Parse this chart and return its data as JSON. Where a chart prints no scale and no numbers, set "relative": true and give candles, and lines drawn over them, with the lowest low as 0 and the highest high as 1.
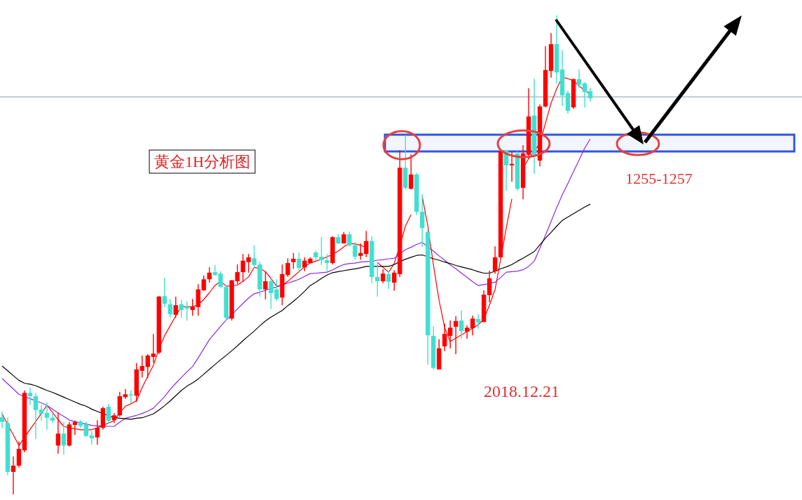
{
  "chart_data": {
    "type": "candlestick",
    "relative": true,
    "title": "黄金1H分析图",
    "annotations": [
      "2018.12.21"
    ],
    "categories": [
      null,
      null,
      null,
      null,
      null,
      null,
      null,
      null,
      null,
      null,
      null,
      null,
      null,
      null,
      null,
      null,
      null,
      null,
      null,
      null,
      null,
      null,
      null,
      null,
      null,
      null,
      null,
      null,
      null,
      null,
      null,
      null,
      null,
      null,
      null,
      null,
      null,
      null,
      null,
      null,
      null,
      null,
      null,
      null,
      null,
      null,
      null,
      null,
      null,
      null,
      null,
      null,
      null,
      null,
      null,
      null,
      null,
      null,
      null,
      null,
      null,
      null,
      null,
      null,
      null,
      null,
      null,
      null,
      null,
      null,
      null,
      null,
      null,
      null,
      null,
      null,
      null,
      null,
      null,
      null,
      null,
      null,
      null,
      null,
      null,
      null,
      null,
      null,
      null,
      null,
      null,
      null,
      null,
      null,
      null,
      null,
      null,
      null,
      null,
      null,
      null,
      null,
      null,
      null,
      null,
      null
    ],
    "ohlc": [
      [
        0.161,
        0.173,
        0.138,
        0.151
      ],
      [
        0.149,
        0.161,
        0.04,
        0.047
      ],
      [
        0.047,
        0.079,
        0,
        0.06
      ],
      [
        0.06,
        0.11,
        0.056,
        0.095
      ],
      [
        0.092,
        0.217,
        0.088,
        0.212
      ],
      [
        0.212,
        0.223,
        0.187,
        0.205
      ],
      [
        0.205,
        0.212,
        0.116,
        0.176
      ],
      [
        0.177,
        0.187,
        0.154,
        0.168
      ],
      [
        0.17,
        0.192,
        0.135,
        0.16
      ],
      [
        0.16,
        0.168,
        0.149,
        0.154
      ],
      [
        0.102,
        0.171,
        0.085,
        0.127
      ],
      [
        0.127,
        0.151,
        0.083,
        0.102
      ],
      [
        0.102,
        0.151,
        0.1,
        0.146
      ],
      [
        0.145,
        0.154,
        0.124,
        0.151
      ],
      [
        0.152,
        0.155,
        0.139,
        0.143
      ],
      [
        0.146,
        0.152,
        0.12,
        0.122
      ],
      [
        0.123,
        0.132,
        0.104,
        0.117
      ],
      [
        0.119,
        0.155,
        0.104,
        0.139
      ],
      [
        0.139,
        0.183,
        0.135,
        0.18
      ],
      [
        0.183,
        0.189,
        0.149,
        0.154
      ],
      [
        0.155,
        0.17,
        0.149,
        0.165
      ],
      [
        0.165,
        0.214,
        0.162,
        0.205
      ],
      [
        0.203,
        0.22,
        0.199,
        0.209
      ],
      [
        0.209,
        0.217,
        0.19,
        0.208
      ],
      [
        0.206,
        0.274,
        0.193,
        0.261
      ],
      [
        0.258,
        0.29,
        0.244,
        0.268
      ],
      [
        0.266,
        0.293,
        0.243,
        0.29
      ],
      [
        0.287,
        0.335,
        0.275,
        0.294
      ],
      [
        0.296,
        0.414,
        0.293,
        0.413
      ],
      [
        0.414,
        0.452,
        0.391,
        0.398
      ],
      [
        0.397,
        0.408,
        0.369,
        0.376
      ],
      [
        0.375,
        0.413,
        0.369,
        0.395
      ],
      [
        0.397,
        0.406,
        0.369,
        0.385
      ],
      [
        0.392,
        0.403,
        0.363,
        0.388
      ],
      [
        0.385,
        0.408,
        0.373,
        0.392
      ],
      [
        0.391,
        0.439,
        0.373,
        0.428
      ],
      [
        0.426,
        0.457,
        0.425,
        0.449
      ],
      [
        0.449,
        0.474,
        0.442,
        0.463
      ],
      [
        0.464,
        0.479,
        0.457,
        0.458
      ],
      [
        0.461,
        0.466,
        0.432,
        0.433
      ],
      [
        0.433,
        0.436,
        0.363,
        0.369
      ],
      [
        0.367,
        0.448,
        0.363,
        0.447
      ],
      [
        0.445,
        0.48,
        0.439,
        0.464
      ],
      [
        0.464,
        0.502,
        0.444,
        0.488
      ],
      [
        0.485,
        0.502,
        0.463,
        0.495
      ],
      [
        0.493,
        0.52,
        0.473,
        0.479
      ],
      [
        0.48,
        0.486,
        0.413,
        0.428
      ],
      [
        0.428,
        0.466,
        0.407,
        0.445
      ],
      [
        0.445,
        0.451,
        0.387,
        0.42
      ],
      [
        0.428,
        0.449,
        0.404,
        0.408
      ],
      [
        0.411,
        0.48,
        0.395,
        0.46
      ],
      [
        0.458,
        0.493,
        0.454,
        0.483
      ],
      [
        0.485,
        0.504,
        0.471,
        0.492
      ],
      [
        0.492,
        0.505,
        0.466,
        0.473
      ],
      [
        0.474,
        0.495,
        0.466,
        0.488
      ],
      [
        0.483,
        0.495,
        0.482,
        0.492
      ],
      [
        0.505,
        0.509,
        0.488,
        0.495
      ],
      [
        0.496,
        0.537,
        0.479,
        0.489
      ],
      [
        0.489,
        0.502,
        0.466,
        0.483
      ],
      [
        0.483,
        0.539,
        0.48,
        0.537
      ],
      [
        0.537,
        0.543,
        0.523,
        0.524
      ],
      [
        0.524,
        0.548,
        0.524,
        0.543
      ],
      [
        0.543,
        0.549,
        0.517,
        0.52
      ],
      [
        0.52,
        0.527,
        0.49,
        0.496
      ],
      [
        0.498,
        0.524,
        0.49,
        0.504
      ],
      [
        0.502,
        0.55,
        0.495,
        0.529
      ],
      [
        0.529,
        0.539,
        0.441,
        0.454
      ],
      [
        0.454,
        0.486,
        0.413,
        0.445
      ],
      [
        0.445,
        0.47,
        0.441,
        0.461
      ],
      [
        0.46,
        0.466,
        0.429,
        0.444
      ],
      [
        0.442,
        0.468,
        0.425,
        0.463
      ],
      [
        0.46,
        0.719,
        0.454,
        0.682
      ],
      [
        0.682,
        0.75,
        0.637,
        0.64
      ],
      [
        0.638,
        0.71,
        0.637,
        0.668
      ],
      [
        0.668,
        0.671,
        0.584,
        0.59
      ],
      [
        0.59,
        0.627,
        0.517,
        0.556
      ],
      [
        0.548,
        0.552,
        0.271,
        0.332
      ],
      [
        0.331,
        0.351,
        0.261,
        0.264
      ],
      [
        0.261,
        0.324,
        0.261,
        0.305
      ],
      [
        0.309,
        0.356,
        0.299,
        0.335
      ],
      [
        0.331,
        0.363,
        0.305,
        0.348
      ],
      [
        0.35,
        0.372,
        0.293,
        0.362
      ],
      [
        0.363,
        0.384,
        0.325,
        0.341
      ],
      [
        0.34,
        0.353,
        0.325,
        0.348
      ],
      [
        0.347,
        0.373,
        0.332,
        0.367
      ],
      [
        0.366,
        0.376,
        0.346,
        0.359
      ],
      [
        0.36,
        0.426,
        0.359,
        0.417
      ],
      [
        0.416,
        0.467,
        0.401,
        0.451
      ],
      [
        0.466,
        0.518,
        0.461,
        0.495
      ],
      [
        0.495,
        0.719,
        0.493,
        0.716
      ],
      [
        0.719,
        0.719,
        0.634,
        0.687
      ],
      [
        0.687,
        0.716,
        0.653,
        0.69
      ],
      [
        0.712,
        0.716,
        0.634,
        0.638
      ],
      [
        0.64,
        0.729,
        0.616,
        0.712
      ],
      [
        0.709,
        0.848,
        0.701,
        0.789
      ],
      [
        0.791,
        0.868,
        0.669,
        0.709
      ],
      [
        0.697,
        0.814,
        0.685,
        0.81
      ],
      [
        0.81,
        0.936,
        0.808,
        0.886
      ],
      [
        0.884,
        0.963,
        0.87,
        0.94
      ],
      [
        0.94,
        1,
        0.858,
        0.881
      ],
      [
        0.887,
        0.927,
        0.811,
        0.833
      ],
      [
        0.838,
        0.843,
        0.795,
        0.801
      ],
      [
        0.808,
        0.868,
        0.805,
        0.867
      ],
      [
        0.867,
        0.887,
        0.848,
        0.855
      ],
      [
        0.858,
        0.861,
        0.808,
        0.84
      ],
      [
        0.842,
        0.849,
        0.82,
        0.827
      ]
    ],
    "series": [
      {
        "type": "line",
        "color": "#ff0000",
        "values": [
          0.168,
          0.146,
          0.124,
          0.102,
          0.119,
          0.136,
          0.152,
          0.169,
          0.186,
          0.171,
          0.156,
          0.142,
          0.139,
          0.137,
          0.135,
          0.135,
          0.135,
          0.139,
          0.144,
          0.149,
          0.154,
          0.17,
          0.184,
          0.189,
          0.196,
          0.223,
          0.247,
          0.269,
          0.304,
          0.331,
          0.352,
          0.373,
          0.392,
          0.392,
          0.392,
          0.396,
          0.407,
          0.421,
          0.436,
          0.445,
          0.435,
          0.435,
          0.437,
          0.445,
          0.454,
          0.474,
          0.472,
          0.465,
          0.451,
          0.435,
          0.436,
          0.445,
          0.455,
          0.465,
          0.476,
          0.483,
          0.487,
          0.491,
          0.496,
          0.501,
          0.508,
          0.517,
          0.524,
          0.523,
          0.52,
          0.515,
          null,
          0.484,
          0.474,
          0.464,
          0.482,
          0.519,
          0.56,
          0.584,
          null,
          0.622,
          0.56,
          0.479,
          0.405,
          0.349,
          0.319,
          0.326,
          0.333,
          0.34,
          0.347,
          0.354,
          0.366,
          0.395,
          0.428,
          0.491,
          0.556,
          0.617,
          null,
          0.681,
          0.701,
          0.717,
          0.733,
          0.775,
          0.817,
          0.847,
          0.871,
          0.868,
          0.864,
          0.853,
          0.843,
          0.836
        ]
      },
      {
        "type": "line",
        "color": "#8a2be2",
        "values": [
          0.242,
          0.231,
          0.22,
          0.209,
          0.204,
          0.2,
          0.195,
          0.191,
          0.186,
          0.178,
          0.17,
          0.163,
          0.155,
          0.152,
          0.149,
          0.147,
          0.144,
          0.143,
          0.143,
          0.142,
          0.142,
          0.151,
          0.159,
          0.162,
          0.165,
          0.169,
          0.174,
          0.18,
          0.192,
          0.204,
          0.219,
          0.232,
          0.244,
          0.256,
          0.267,
          0.285,
          0.304,
          0.323,
          0.337,
          0.351,
          0.364,
          0.375,
          0.387,
          0.399,
          0.41,
          0.419,
          0.422,
          0.426,
          0.43,
          0.433,
          0.437,
          0.441,
          0.445,
          0.449,
          0.455,
          0.461,
          0.462,
          0.463,
          0.464,
          0.469,
          0.475,
          0.48,
          0.482,
          0.483,
          0.485,
          0.486,
          0.487,
          0.489,
          0.49,
          0.492,
          0.493,
          0.502,
          0.511,
          0.516,
          0.522,
          0.526,
          0.517,
          0.508,
          0.498,
          0.489,
          0.479,
          0.471,
          0.462,
          0.453,
          0.444,
          0.436,
          0.438,
          0.44,
          0.443,
          0.453,
          0.464,
          0.465,
          0.466,
          0.469,
          0.476,
          0.487,
          0.514,
          0.541,
          0.57,
          0.599,
          0.625,
          0.649,
          0.674,
          0.698,
          0.723,
          0.742
        ]
      },
      {
        "type": "line",
        "color": "#000000",
        "values": [
          0.268,
          0.258,
          0.248,
          0.238,
          0.232,
          0.23,
          0.227,
          0.222,
          0.217,
          0.213,
          0.208,
          0.203,
          0.198,
          0.193,
          0.188,
          0.184,
          0.178,
          0.173,
          0.169,
          0.164,
          0.16,
          0.159,
          0.158,
          0.157,
          0.159,
          0.16,
          0.164,
          0.168,
          0.176,
          0.185,
          0.195,
          0.206,
          0.217,
          0.226,
          0.233,
          0.241,
          0.251,
          0.261,
          0.271,
          0.281,
          0.29,
          0.3,
          0.31,
          0.321,
          0.331,
          0.341,
          0.352,
          0.362,
          0.37,
          0.377,
          0.384,
          0.394,
          0.403,
          0.413,
          0.424,
          0.436,
          0.443,
          0.451,
          0.458,
          0.463,
          0.465,
          0.467,
          0.469,
          0.471,
          0.473,
          0.476,
          0.476,
          0.476,
          0.476,
          0.476,
          0.48,
          0.486,
          0.491,
          0.495,
          0.499,
          0.5,
          0.496,
          0.492,
          0.489,
          0.485,
          0.482,
          0.478,
          0.475,
          0.472,
          0.469,
          0.465,
          0.462,
          0.462,
          0.466,
          0.471,
          0.475,
          0.48,
          0.487,
          0.493,
          0.5,
          0.507,
          0.521,
          0.535,
          0.547,
          0.56,
          0.572,
          0.579,
          0.586,
          0.593,
          0.6,
          0.606
        ]
      }
    ],
    "ref_lines": [
      {
        "axis": "y",
        "value": 0.83,
        "color": "#8899aa"
      }
    ],
    "bands": [
      {
        "axis": "y",
        "from": 0.716,
        "to": 0.751,
        "label": "1255-1257",
        "color": "#3355dd"
      }
    ]
  }
}
